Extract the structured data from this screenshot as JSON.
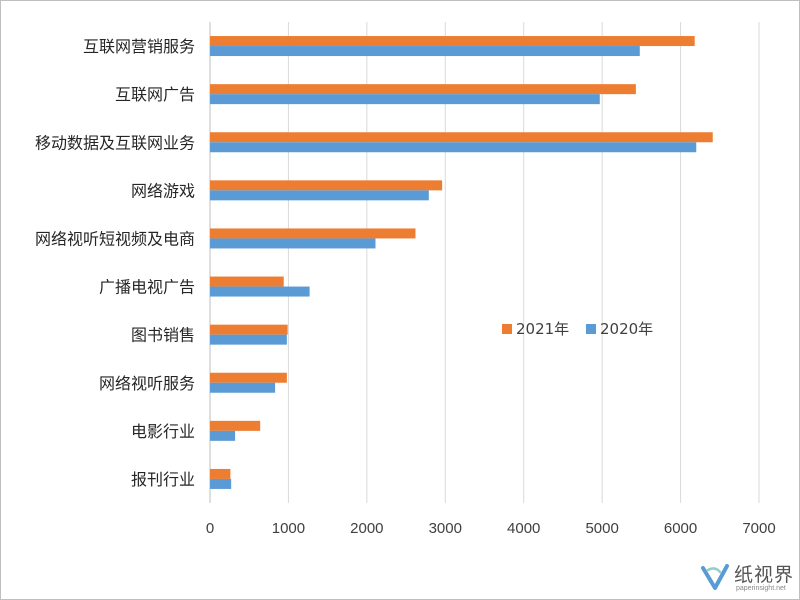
{
  "chart_data": {
    "type": "bar",
    "orientation": "horizontal",
    "categories": [
      "互联网营销服务",
      "互联网广告",
      "移动数据及互联网业务",
      "网络游戏",
      "网络视听短视频及电商",
      "广播电视广告",
      "图书销售",
      "网络视听服务",
      "电影行业",
      "报刊行业"
    ],
    "series": [
      {
        "name": "2021年",
        "color": "#ED7D31",
        "values": [
          6180,
          5430,
          6410,
          2960,
          2620,
          940,
          990,
          980,
          640,
          260
        ]
      },
      {
        "name": "2020年",
        "color": "#5B9BD5",
        "values": [
          5480,
          4970,
          6200,
          2790,
          2110,
          1270,
          980,
          830,
          320,
          270
        ]
      }
    ],
    "xlim": [
      0,
      7000
    ],
    "xticks": [
      0,
      1000,
      2000,
      3000,
      4000,
      5000,
      6000,
      7000
    ],
    "grid": "vertical",
    "legend_position": "right-middle"
  },
  "watermark": {
    "text": "纸视界",
    "subtext": "paperinsight.net"
  }
}
